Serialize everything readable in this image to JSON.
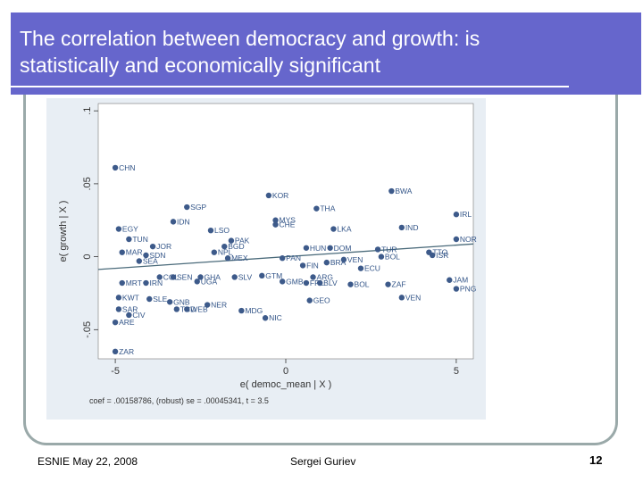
{
  "slide": {
    "title_line1": "The correlation between democracy and growth: is",
    "title_line2": "statistically and economically significant",
    "footer_left": "ESNIE May 22, 2008",
    "footer_center": "Sergei Guriev",
    "page_number": "12",
    "accent_color": "#6666cc",
    "point_color": "#3d5a8a"
  },
  "chart_data": {
    "type": "scatter",
    "xlabel": "e( democ_mean | X )",
    "ylabel": "e( growth | X )",
    "xlim": [
      -5.5,
      5.5
    ],
    "ylim": [
      -0.07,
      0.105
    ],
    "xticks": [
      -5,
      0,
      5
    ],
    "xtick_labels": [
      "-5",
      "0",
      "5"
    ],
    "yticks": [
      -0.05,
      0,
      0.05,
      0.1
    ],
    "ytick_labels": [
      "-.05",
      "0",
      ".05",
      ".1"
    ],
    "note": "coef = .00158786, (robust) se = .00045341, t = 3.5",
    "fit_line": {
      "slope": 0.00158786,
      "intercept": 0.0
    },
    "points": [
      {
        "label": "CHN",
        "x": -5.0,
        "y": 0.061
      },
      {
        "label": "BWA",
        "x": 3.1,
        "y": 0.045
      },
      {
        "label": "KOR",
        "x": -0.5,
        "y": 0.042
      },
      {
        "label": "SGP",
        "x": -2.9,
        "y": 0.034
      },
      {
        "label": "THA",
        "x": 0.9,
        "y": 0.033
      },
      {
        "label": "IRL",
        "x": 5.0,
        "y": 0.029
      },
      {
        "label": "IDN",
        "x": -3.3,
        "y": 0.024
      },
      {
        "label": "MYS",
        "x": -0.3,
        "y": 0.025
      },
      {
        "label": "CHE",
        "x": -0.3,
        "y": 0.022
      },
      {
        "label": "EGY",
        "x": -4.9,
        "y": 0.019
      },
      {
        "label": "LSO",
        "x": -2.2,
        "y": 0.018
      },
      {
        "label": "LKA",
        "x": 1.4,
        "y": 0.019
      },
      {
        "label": "IND",
        "x": 3.4,
        "y": 0.02
      },
      {
        "label": "TUN",
        "x": -4.6,
        "y": 0.012
      },
      {
        "label": "PAK",
        "x": -1.6,
        "y": 0.011
      },
      {
        "label": "JOR",
        "x": -3.9,
        "y": 0.007
      },
      {
        "label": "BGD",
        "x": -1.8,
        "y": 0.007
      },
      {
        "label": "HUN",
        "x": 0.6,
        "y": 0.006
      },
      {
        "label": "DOM",
        "x": 1.3,
        "y": 0.006
      },
      {
        "label": "NOR",
        "x": 5.0,
        "y": 0.012
      },
      {
        "label": "TUR",
        "x": 2.7,
        "y": 0.005
      },
      {
        "label": "PNG",
        "x": 5.0,
        "y": -0.022
      },
      {
        "label": "MAR",
        "x": -4.8,
        "y": 0.003
      },
      {
        "label": "SDN",
        "x": -4.1,
        "y": 0.001
      },
      {
        "label": "NPL",
        "x": -2.1,
        "y": 0.003
      },
      {
        "label": "MEX",
        "x": -1.7,
        "y": -0.001
      },
      {
        "label": "PAN",
        "x": -0.1,
        "y": -0.001
      },
      {
        "label": "SEA",
        "x": -4.3,
        "y": -0.003
      },
      {
        "label": "FIN",
        "x": 0.5,
        "y": -0.006
      },
      {
        "label": "BRA",
        "x": 1.2,
        "y": -0.004
      },
      {
        "label": "VEN2",
        "x": 1.7,
        "y": -0.002
      },
      {
        "label": "BOL",
        "x": 2.8,
        "y": 0.0
      },
      {
        "label": "TTO",
        "x": 4.2,
        "y": 0.003
      },
      {
        "label": "ISR",
        "x": 4.3,
        "y": 0.001
      },
      {
        "label": "ECU",
        "x": 2.2,
        "y": -0.008
      },
      {
        "label": "COL",
        "x": -3.7,
        "y": -0.014
      },
      {
        "label": "SEN",
        "x": -3.3,
        "y": -0.014
      },
      {
        "label": "GHA",
        "x": -2.5,
        "y": -0.014
      },
      {
        "label": "GTM",
        "x": -0.7,
        "y": -0.013
      },
      {
        "label": "SLV",
        "x": -1.5,
        "y": -0.014
      },
      {
        "label": "ARG",
        "x": 0.8,
        "y": -0.014
      },
      {
        "label": "MRT",
        "x": -4.8,
        "y": -0.018
      },
      {
        "label": "IRN",
        "x": -4.1,
        "y": -0.018
      },
      {
        "label": "UGA",
        "x": -2.6,
        "y": -0.017
      },
      {
        "label": "GMB",
        "x": -0.1,
        "y": -0.017
      },
      {
        "label": "FRL",
        "x": 0.6,
        "y": -0.018
      },
      {
        "label": "BLV",
        "x": 1.0,
        "y": -0.018
      },
      {
        "label": "BOL2",
        "x": 1.9,
        "y": -0.019
      },
      {
        "label": "ZAF",
        "x": 3.0,
        "y": -0.019
      },
      {
        "label": "JAM",
        "x": 4.8,
        "y": -0.016
      },
      {
        "label": "KWT",
        "x": -4.9,
        "y": -0.028
      },
      {
        "label": "SLE",
        "x": -4.0,
        "y": -0.029
      },
      {
        "label": "GNB",
        "x": -3.4,
        "y": -0.031
      },
      {
        "label": "NER",
        "x": -2.3,
        "y": -0.033
      },
      {
        "label": "GEO",
        "x": 0.7,
        "y": -0.03
      },
      {
        "label": "VEN",
        "x": 3.4,
        "y": -0.028
      },
      {
        "label": "SAR",
        "x": -4.9,
        "y": -0.036
      },
      {
        "label": "TCD",
        "x": -3.2,
        "y": -0.036
      },
      {
        "label": "WEB",
        "x": -2.9,
        "y": -0.036
      },
      {
        "label": "MDG",
        "x": -1.3,
        "y": -0.037
      },
      {
        "label": "CIV",
        "x": -4.6,
        "y": -0.04
      },
      {
        "label": "NIC",
        "x": -0.6,
        "y": -0.042
      },
      {
        "label": "ARE",
        "x": -5.0,
        "y": -0.045
      },
      {
        "label": "ZAR",
        "x": -5.0,
        "y": -0.065
      }
    ]
  }
}
